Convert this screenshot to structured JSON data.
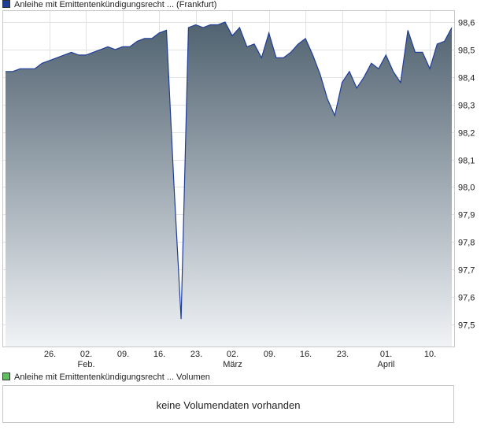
{
  "price_legend": {
    "label": "Anleihe mit Emittentenkündigungsrecht ... (Frankfurt)",
    "color": "#1f3d99"
  },
  "volume_legend": {
    "label": "Anleihe mit Emittentenkündigungsrecht ... Volumen",
    "color": "#5fbf5f"
  },
  "volume_panel": {
    "message": "keine Volumendaten vorhanden"
  },
  "chart_data": {
    "type": "area",
    "title": "Anleihe mit Emittentenkündigungsrecht ... (Frankfurt)",
    "ylim": [
      97.42,
      98.64
    ],
    "y_ticks": [
      "98,6",
      "98,5",
      "98,4",
      "98,3",
      "98,2",
      "98,1",
      "98,0",
      "97,9",
      "97,8",
      "97,7",
      "97,6",
      "97,5"
    ],
    "y_tick_values": [
      98.6,
      98.5,
      98.4,
      98.3,
      98.2,
      98.1,
      98.0,
      97.9,
      97.8,
      97.7,
      97.6,
      97.5
    ],
    "x_ticks": [
      {
        "label": "26.",
        "i": 6
      },
      {
        "label": "02.",
        "sub": "Feb.",
        "i": 11
      },
      {
        "label": "09.",
        "i": 16
      },
      {
        "label": "16.",
        "i": 21
      },
      {
        "label": "23.",
        "i": 26
      },
      {
        "label": "02.",
        "sub": "März",
        "i": 31
      },
      {
        "label": "09.",
        "i": 36
      },
      {
        "label": "16.",
        "i": 41
      },
      {
        "label": "23.",
        "i": 46
      },
      {
        "label": "01.",
        "sub": "April",
        "i": 52
      },
      {
        "label": "10.",
        "i": 58
      }
    ],
    "line_color": "#1f3d99",
    "fill_top": "#506270",
    "fill_bottom": "#f0f3f6",
    "values": [
      98.42,
      98.42,
      98.43,
      98.43,
      98.43,
      98.45,
      98.46,
      98.47,
      98.48,
      98.49,
      98.48,
      98.48,
      98.49,
      98.5,
      98.51,
      98.5,
      98.51,
      98.51,
      98.53,
      98.54,
      98.54,
      98.56,
      98.57,
      98.02,
      97.52,
      98.58,
      98.59,
      98.58,
      98.59,
      98.59,
      98.6,
      98.55,
      98.58,
      98.51,
      98.52,
      98.47,
      98.56,
      98.47,
      98.47,
      98.49,
      98.52,
      98.54,
      98.48,
      98.41,
      98.32,
      98.26,
      98.38,
      98.42,
      98.36,
      98.4,
      98.45,
      98.43,
      98.48,
      98.42,
      98.38,
      98.57,
      98.49,
      98.49,
      98.43,
      98.52,
      98.53,
      98.58
    ]
  }
}
